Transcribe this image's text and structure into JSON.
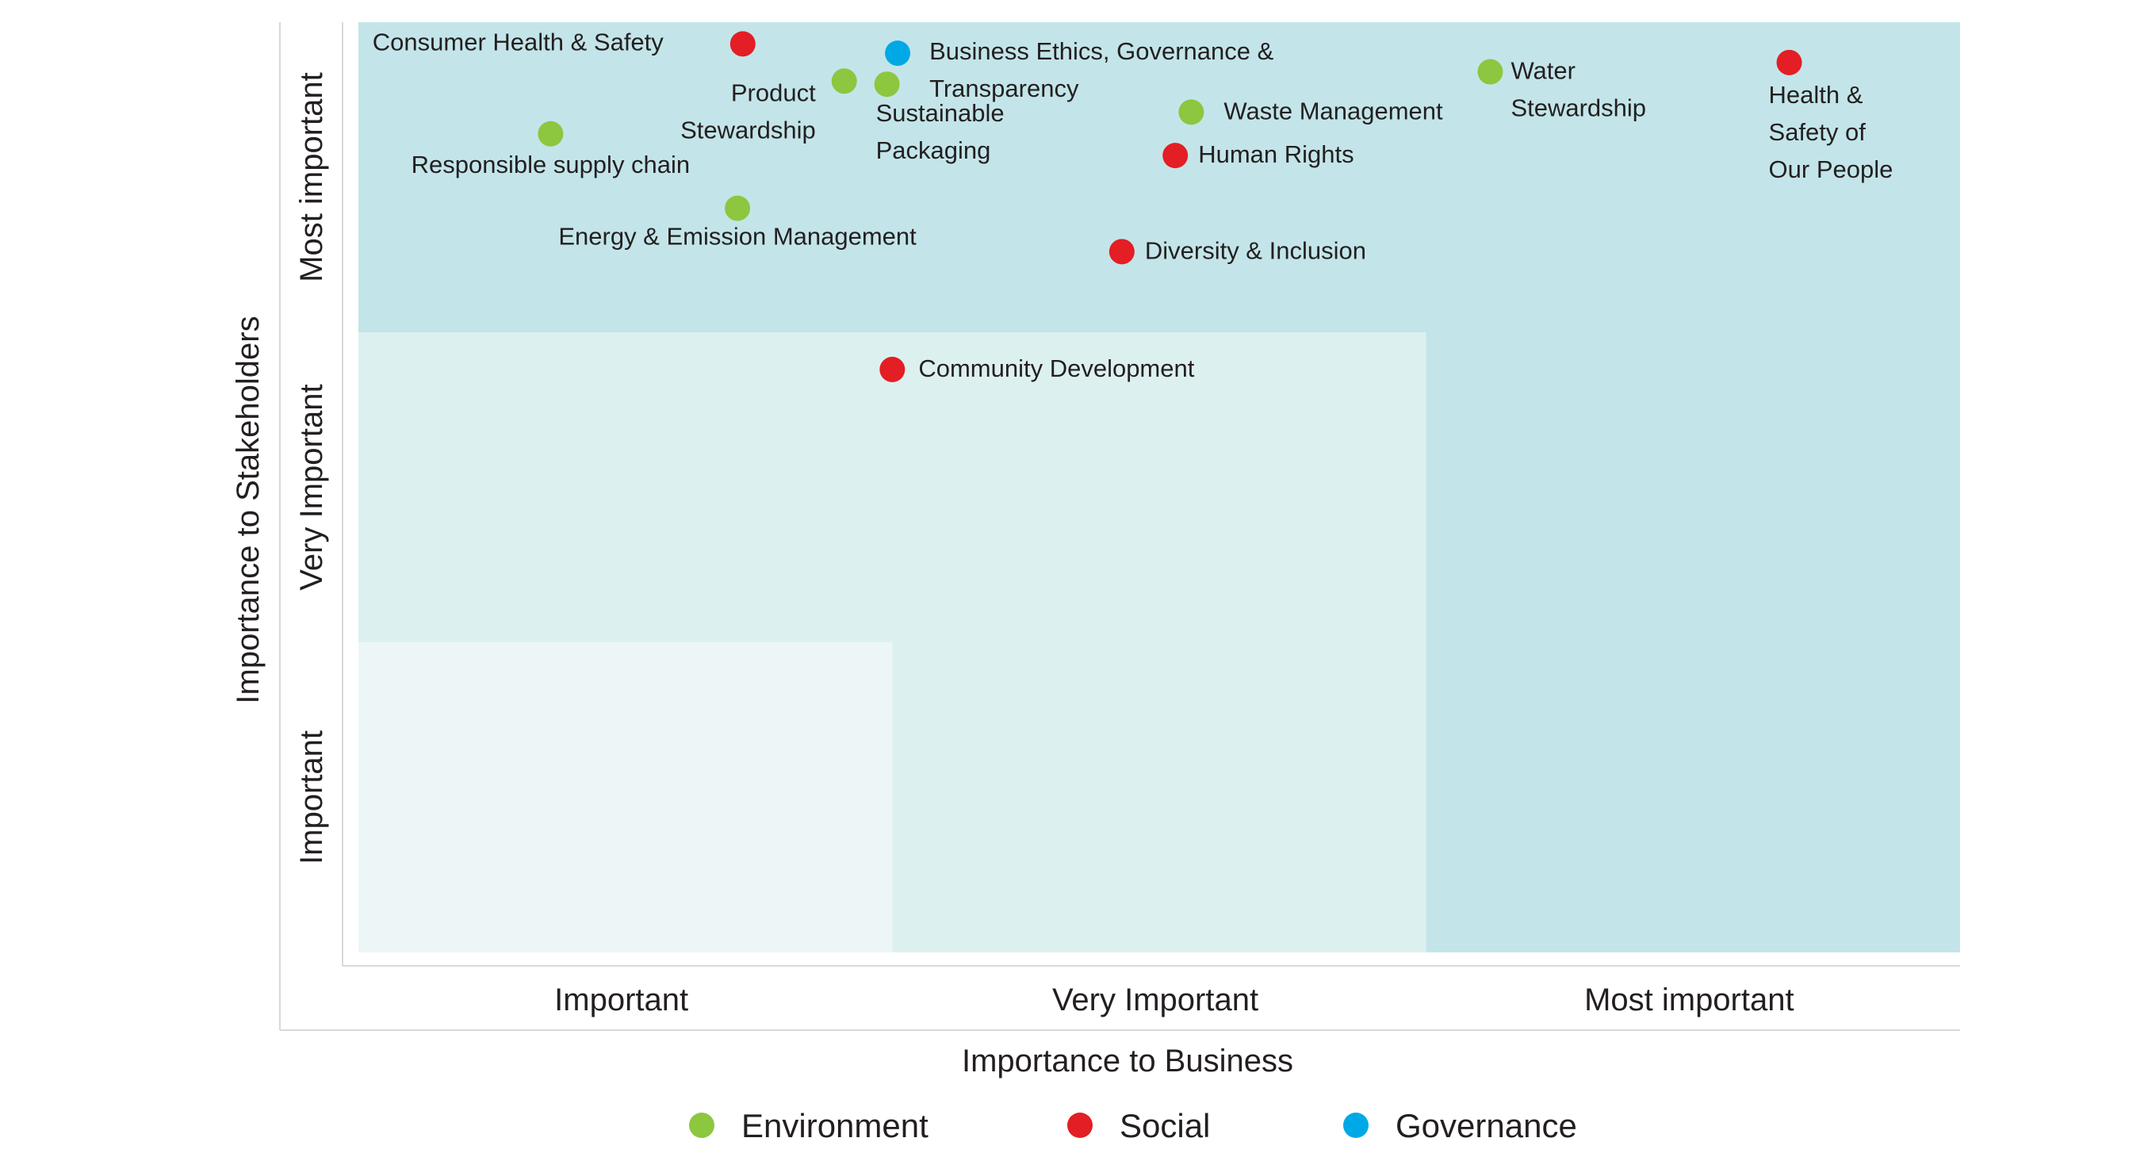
{
  "chart_data": {
    "type": "scatter",
    "xlabel": "Importance to Business",
    "ylabel": "Importance to Stakeholders",
    "x_ticks": [
      "Important",
      "Very Important",
      "Most important"
    ],
    "y_ticks": [
      "Important",
      "Very Important",
      "Most important"
    ],
    "xlim": [
      0,
      3
    ],
    "ylim": [
      0,
      3
    ],
    "grid": false,
    "legend_position": "bottom",
    "categories": [
      {
        "name": "Environment",
        "color": "#8dc63f"
      },
      {
        "name": "Social",
        "color": "#e31e24"
      },
      {
        "name": "Governance",
        "color": "#00a9e6"
      }
    ],
    "zones": [
      {
        "x": 3,
        "y": 3,
        "color": "#c3e5e9"
      },
      {
        "x": 2,
        "y": 2,
        "color": "#ddf0f0"
      },
      {
        "x": 1,
        "y": 1,
        "color": "#edf6f7"
      }
    ],
    "points": [
      {
        "label": [
          "Consumer Health & Safety"
        ],
        "category": "Social",
        "x": 0.72,
        "y": 2.93
      },
      {
        "label": [
          "Business Ethics, Governance &",
          "Transparency"
        ],
        "category": "Governance",
        "x": 1.01,
        "y": 2.9
      },
      {
        "label": [
          "Product",
          "Stewardship"
        ],
        "category": "Environment",
        "x": 0.91,
        "y": 2.81
      },
      {
        "label": [
          "Sustainable",
          "Packaging"
        ],
        "category": "Environment",
        "x": 0.99,
        "y": 2.8
      },
      {
        "label": [
          "Water",
          "Stewardship"
        ],
        "category": "Environment",
        "x": 2.12,
        "y": 2.84
      },
      {
        "label": [
          "Health &",
          "Safety of",
          "Our People"
        ],
        "category": "Social",
        "x": 2.68,
        "y": 2.87
      },
      {
        "label": [
          "Waste Management"
        ],
        "category": "Environment",
        "x": 1.56,
        "y": 2.71
      },
      {
        "label": [
          "Responsible supply chain"
        ],
        "category": "Environment",
        "x": 0.36,
        "y": 2.64
      },
      {
        "label": [
          "Human Rights"
        ],
        "category": "Social",
        "x": 1.53,
        "y": 2.57
      },
      {
        "label": [
          "Energy & Emission Management"
        ],
        "category": "Environment",
        "x": 0.71,
        "y": 2.4
      },
      {
        "label": [
          "Diversity & Inclusion"
        ],
        "category": "Social",
        "x": 1.43,
        "y": 2.26
      },
      {
        "label": [
          "Community Development"
        ],
        "category": "Social",
        "x": 1.0,
        "y": 1.88
      }
    ]
  }
}
